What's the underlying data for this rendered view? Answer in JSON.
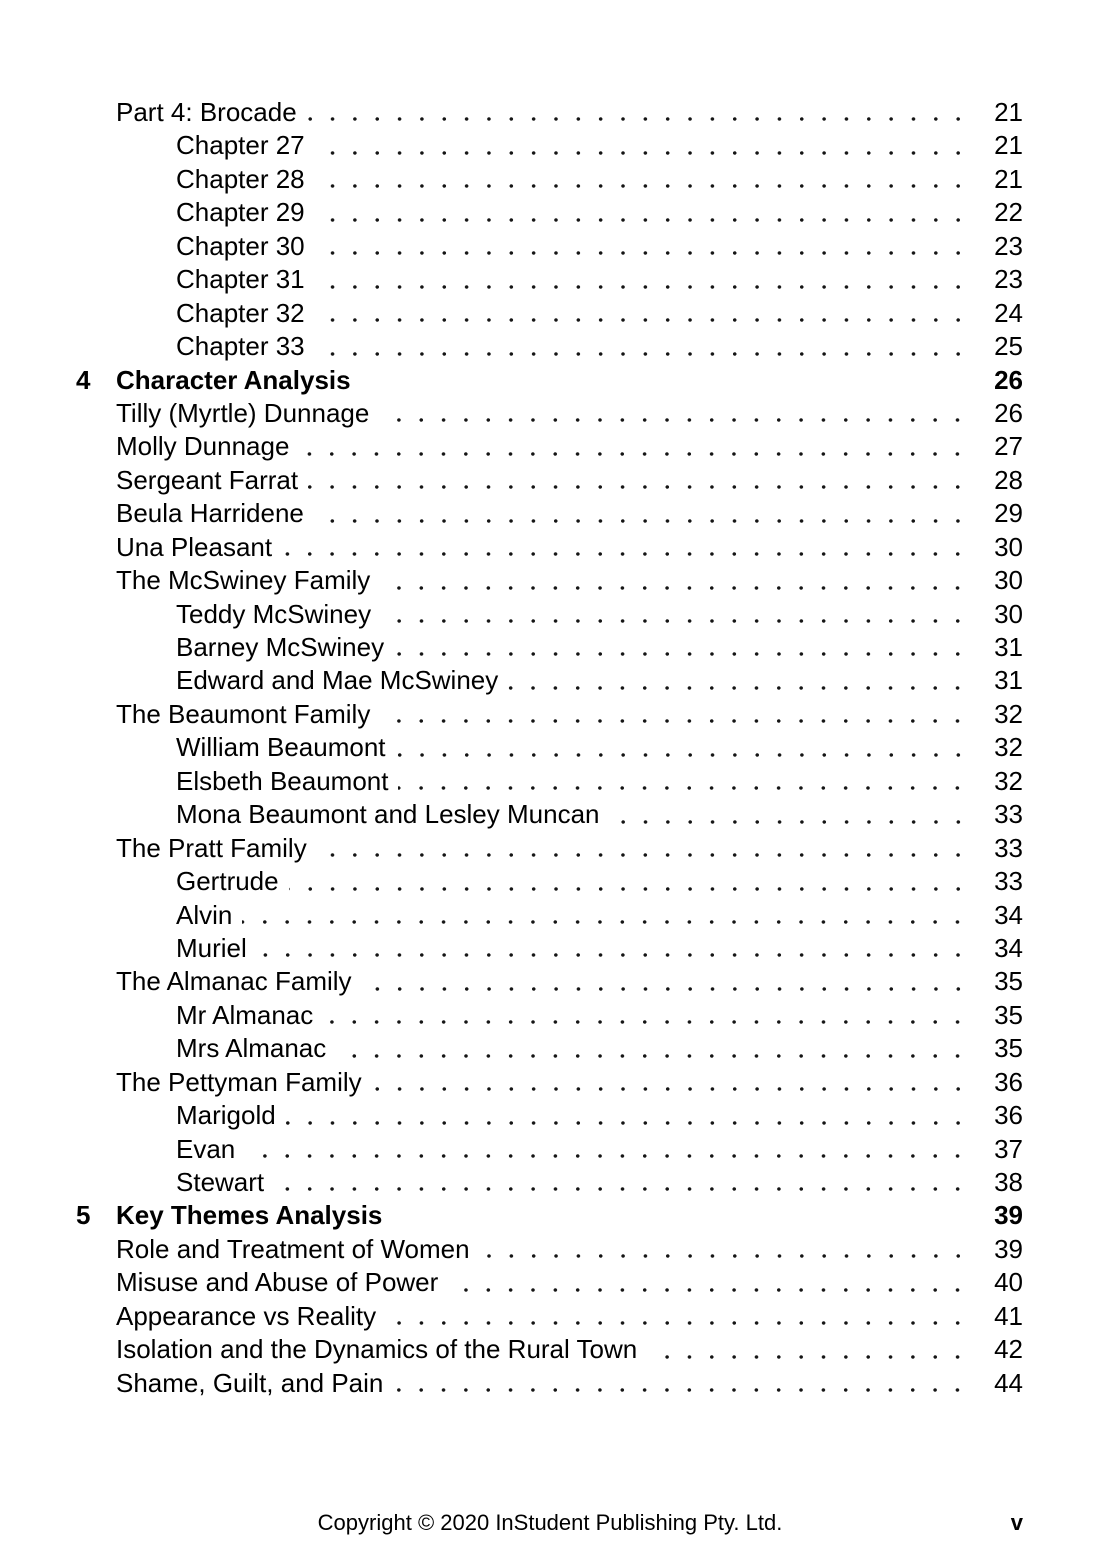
{
  "toc": {
    "entries": [
      {
        "level": 2,
        "label": "Part 4: Brocade",
        "page": "21"
      },
      {
        "level": 3,
        "label": "Chapter 27",
        "page": "21"
      },
      {
        "level": 3,
        "label": "Chapter 28",
        "page": "21"
      },
      {
        "level": 3,
        "label": "Chapter 29",
        "page": "22"
      },
      {
        "level": 3,
        "label": "Chapter 30",
        "page": "23"
      },
      {
        "level": 3,
        "label": "Chapter 31",
        "page": "23"
      },
      {
        "level": 3,
        "label": "Chapter 32",
        "page": "24"
      },
      {
        "level": 3,
        "label": "Chapter 33",
        "page": "25"
      },
      {
        "level": 1,
        "number": "4",
        "label": "Character Analysis",
        "page": "26"
      },
      {
        "level": 2,
        "label": "Tilly (Myrtle) Dunnage",
        "page": "26"
      },
      {
        "level": 2,
        "label": "Molly Dunnage",
        "page": "27"
      },
      {
        "level": 2,
        "label": "Sergeant Farrat",
        "page": "28"
      },
      {
        "level": 2,
        "label": "Beula Harridene",
        "page": "29"
      },
      {
        "level": 2,
        "label": "Una Pleasant",
        "page": "30"
      },
      {
        "level": 2,
        "label": "The McSwiney Family",
        "page": "30"
      },
      {
        "level": 3,
        "label": "Teddy McSwiney",
        "page": "30"
      },
      {
        "level": 3,
        "label": "Barney McSwiney",
        "page": "31"
      },
      {
        "level": 3,
        "label": "Edward and Mae McSwiney",
        "page": "31"
      },
      {
        "level": 2,
        "label": "The Beaumont Family",
        "page": "32"
      },
      {
        "level": 3,
        "label": "William Beaumont",
        "page": "32"
      },
      {
        "level": 3,
        "label": "Elsbeth Beaumont",
        "page": "32"
      },
      {
        "level": 3,
        "label": "Mona Beaumont and Lesley Muncan",
        "page": "33"
      },
      {
        "level": 2,
        "label": "The Pratt Family",
        "page": "33"
      },
      {
        "level": 3,
        "label": "Gertrude",
        "page": "33"
      },
      {
        "level": 3,
        "label": "Alvin",
        "page": "34"
      },
      {
        "level": 3,
        "label": "Muriel",
        "page": "34"
      },
      {
        "level": 2,
        "label": "The Almanac Family",
        "page": "35"
      },
      {
        "level": 3,
        "label": "Mr Almanac",
        "page": "35"
      },
      {
        "level": 3,
        "label": "Mrs Almanac",
        "page": "35"
      },
      {
        "level": 2,
        "label": "The Pettyman Family",
        "page": "36"
      },
      {
        "level": 3,
        "label": "Marigold",
        "page": "36"
      },
      {
        "level": 3,
        "label": "Evan",
        "page": "37"
      },
      {
        "level": 3,
        "label": "Stewart",
        "page": "38"
      },
      {
        "level": 1,
        "number": "5",
        "label": "Key Themes Analysis",
        "page": "39"
      },
      {
        "level": 2,
        "label": "Role and Treatment of Women",
        "page": "39"
      },
      {
        "level": 2,
        "label": "Misuse and Abuse of Power",
        "page": "40"
      },
      {
        "level": 2,
        "label": "Appearance vs Reality",
        "page": "41"
      },
      {
        "level": 2,
        "label": "Isolation and the Dynamics of the Rural Town",
        "page": "42"
      },
      {
        "level": 2,
        "label": "Shame, Guilt, and Pain",
        "page": "44"
      }
    ]
  },
  "footer": {
    "copyright": "Copyright © 2020 InStudent Publishing Pty. Ltd.",
    "page_number": "v"
  },
  "colors": {
    "text": "#000000",
    "background": "#ffffff",
    "leader_dot": "#141414"
  }
}
